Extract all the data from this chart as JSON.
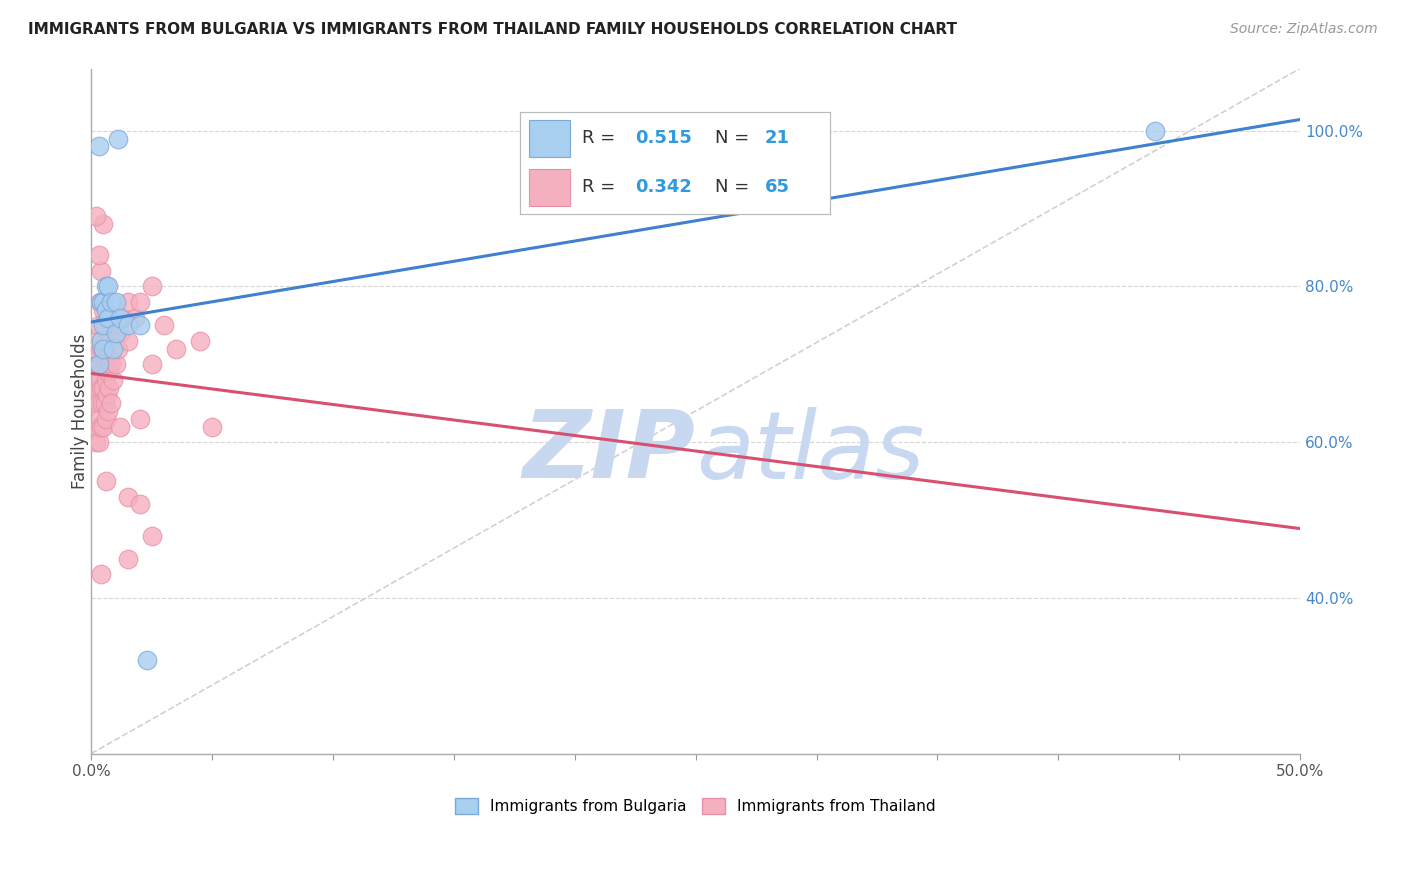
{
  "title": "IMMIGRANTS FROM BULGARIA VS IMMIGRANTS FROM THAILAND FAMILY HOUSEHOLDS CORRELATION CHART",
  "source": "Source: ZipAtlas.com",
  "ylabel": "Family Households",
  "xlim": [
    0.0,
    50.0
  ],
  "ylim": [
    20.0,
    108.0
  ],
  "y_tick_vals": [
    40.0,
    60.0,
    80.0,
    100.0
  ],
  "legend_r1": "0.515",
  "legend_n1": "21",
  "legend_r2": "0.342",
  "legend_n2": "65",
  "bulgaria_color": "#a8cef0",
  "thailand_color": "#f5b0c0",
  "bulgaria_edge": "#7aaad8",
  "thailand_edge": "#e890a8",
  "trendline_bulgaria_color": "#4080cc",
  "trendline_thailand_color": "#d85070",
  "diagonal_color": "#cccccc",
  "watermark_color": "#c8d8f0",
  "bg_color": "#ffffff",
  "grid_color": "#cccccc",
  "bulgaria_scatter": [
    [
      0.3,
      98.0
    ],
    [
      1.1,
      99.0
    ],
    [
      0.3,
      70.0
    ],
    [
      0.4,
      73.0
    ],
    [
      0.4,
      78.0
    ],
    [
      0.5,
      75.0
    ],
    [
      0.5,
      78.0
    ],
    [
      0.5,
      72.0
    ],
    [
      0.6,
      77.0
    ],
    [
      0.6,
      80.0
    ],
    [
      0.7,
      76.0
    ],
    [
      0.7,
      80.0
    ],
    [
      0.8,
      78.0
    ],
    [
      0.9,
      72.0
    ],
    [
      1.0,
      78.0
    ],
    [
      1.0,
      74.0
    ],
    [
      1.2,
      76.0
    ],
    [
      1.5,
      75.0
    ],
    [
      2.0,
      75.0
    ],
    [
      2.3,
      32.0
    ],
    [
      44.0,
      100.0
    ]
  ],
  "thailand_scatter": [
    [
      0.15,
      65.0
    ],
    [
      0.15,
      68.0
    ],
    [
      0.2,
      60.0
    ],
    [
      0.2,
      66.0
    ],
    [
      0.2,
      72.0
    ],
    [
      0.25,
      62.0
    ],
    [
      0.25,
      67.0
    ],
    [
      0.25,
      73.0
    ],
    [
      0.3,
      60.0
    ],
    [
      0.3,
      65.0
    ],
    [
      0.3,
      70.0
    ],
    [
      0.3,
      75.0
    ],
    [
      0.35,
      63.0
    ],
    [
      0.35,
      68.0
    ],
    [
      0.35,
      78.0
    ],
    [
      0.4,
      62.0
    ],
    [
      0.4,
      67.0
    ],
    [
      0.4,
      72.0
    ],
    [
      0.4,
      82.0
    ],
    [
      0.45,
      65.0
    ],
    [
      0.45,
      70.0
    ],
    [
      0.5,
      62.0
    ],
    [
      0.5,
      67.0
    ],
    [
      0.5,
      72.0
    ],
    [
      0.5,
      77.0
    ],
    [
      0.55,
      65.0
    ],
    [
      0.55,
      70.0
    ],
    [
      0.55,
      75.0
    ],
    [
      0.6,
      63.0
    ],
    [
      0.6,
      68.0
    ],
    [
      0.6,
      73.0
    ],
    [
      0.65,
      66.0
    ],
    [
      0.65,
      71.0
    ],
    [
      0.7,
      64.0
    ],
    [
      0.7,
      69.0
    ],
    [
      0.75,
      67.0
    ],
    [
      0.8,
      65.0
    ],
    [
      0.8,
      70.0
    ],
    [
      0.9,
      68.0
    ],
    [
      1.0,
      70.0
    ],
    [
      1.0,
      75.0
    ],
    [
      1.1,
      72.0
    ],
    [
      1.2,
      74.0
    ],
    [
      1.3,
      76.0
    ],
    [
      1.5,
      53.0
    ],
    [
      1.5,
      73.0
    ],
    [
      1.5,
      78.0
    ],
    [
      1.8,
      76.0
    ],
    [
      2.0,
      63.0
    ],
    [
      2.0,
      78.0
    ],
    [
      2.5,
      70.0
    ],
    [
      2.5,
      80.0
    ],
    [
      3.0,
      75.0
    ],
    [
      3.5,
      72.0
    ],
    [
      4.5,
      73.0
    ],
    [
      0.5,
      88.0
    ],
    [
      0.3,
      84.0
    ],
    [
      2.0,
      52.0
    ],
    [
      1.5,
      45.0
    ],
    [
      0.4,
      43.0
    ],
    [
      2.5,
      48.0
    ],
    [
      0.2,
      89.0
    ],
    [
      1.2,
      62.0
    ],
    [
      5.0,
      62.0
    ],
    [
      0.6,
      55.0
    ]
  ]
}
